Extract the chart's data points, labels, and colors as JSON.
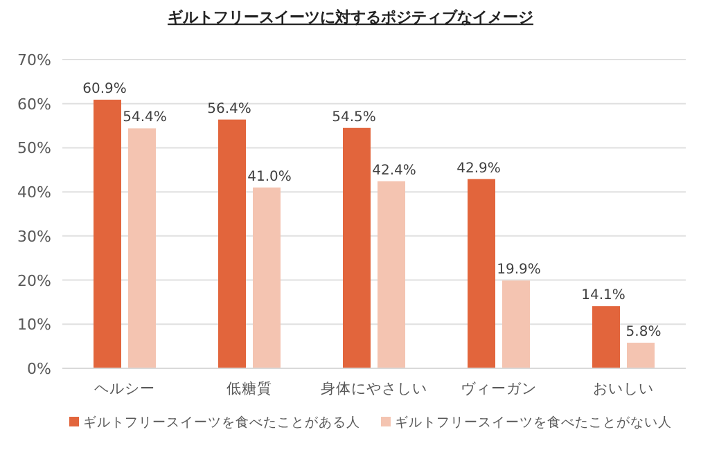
{
  "chart_data": {
    "type": "bar",
    "title": "ギルトフリースイーツに対するポジティブなイメージ",
    "categories": [
      "ヘルシー",
      "低糖質",
      "身体にやさしい",
      "ヴィーガン",
      "おいしい"
    ],
    "series": [
      {
        "name": "ギルトフリースイーツを食べたことがある人",
        "color": "#e2653c",
        "values": [
          60.9,
          56.4,
          54.5,
          42.9,
          14.1
        ],
        "value_labels": [
          "60.9%",
          "56.4%",
          "54.5%",
          "42.9%",
          "14.1%"
        ]
      },
      {
        "name": "ギルトフリースイーツを食べたことがない人",
        "color": "#f4c4b1",
        "values": [
          54.4,
          41.0,
          42.4,
          19.9,
          5.8
        ],
        "value_labels": [
          "54.4%",
          "41.0%",
          "42.4%",
          "19.9%",
          "5.8%"
        ]
      }
    ],
    "ylim": [
      0,
      70
    ],
    "yticks": [
      {
        "value": 0,
        "label": "0%"
      },
      {
        "value": 10,
        "label": "10%"
      },
      {
        "value": 20,
        "label": "20%"
      },
      {
        "value": 30,
        "label": "30%"
      },
      {
        "value": 40,
        "label": "40%"
      },
      {
        "value": 50,
        "label": "50%"
      },
      {
        "value": 60,
        "label": "60%"
      },
      {
        "value": 70,
        "label": "70%"
      }
    ],
    "grid": "y",
    "legend": "bottom"
  }
}
